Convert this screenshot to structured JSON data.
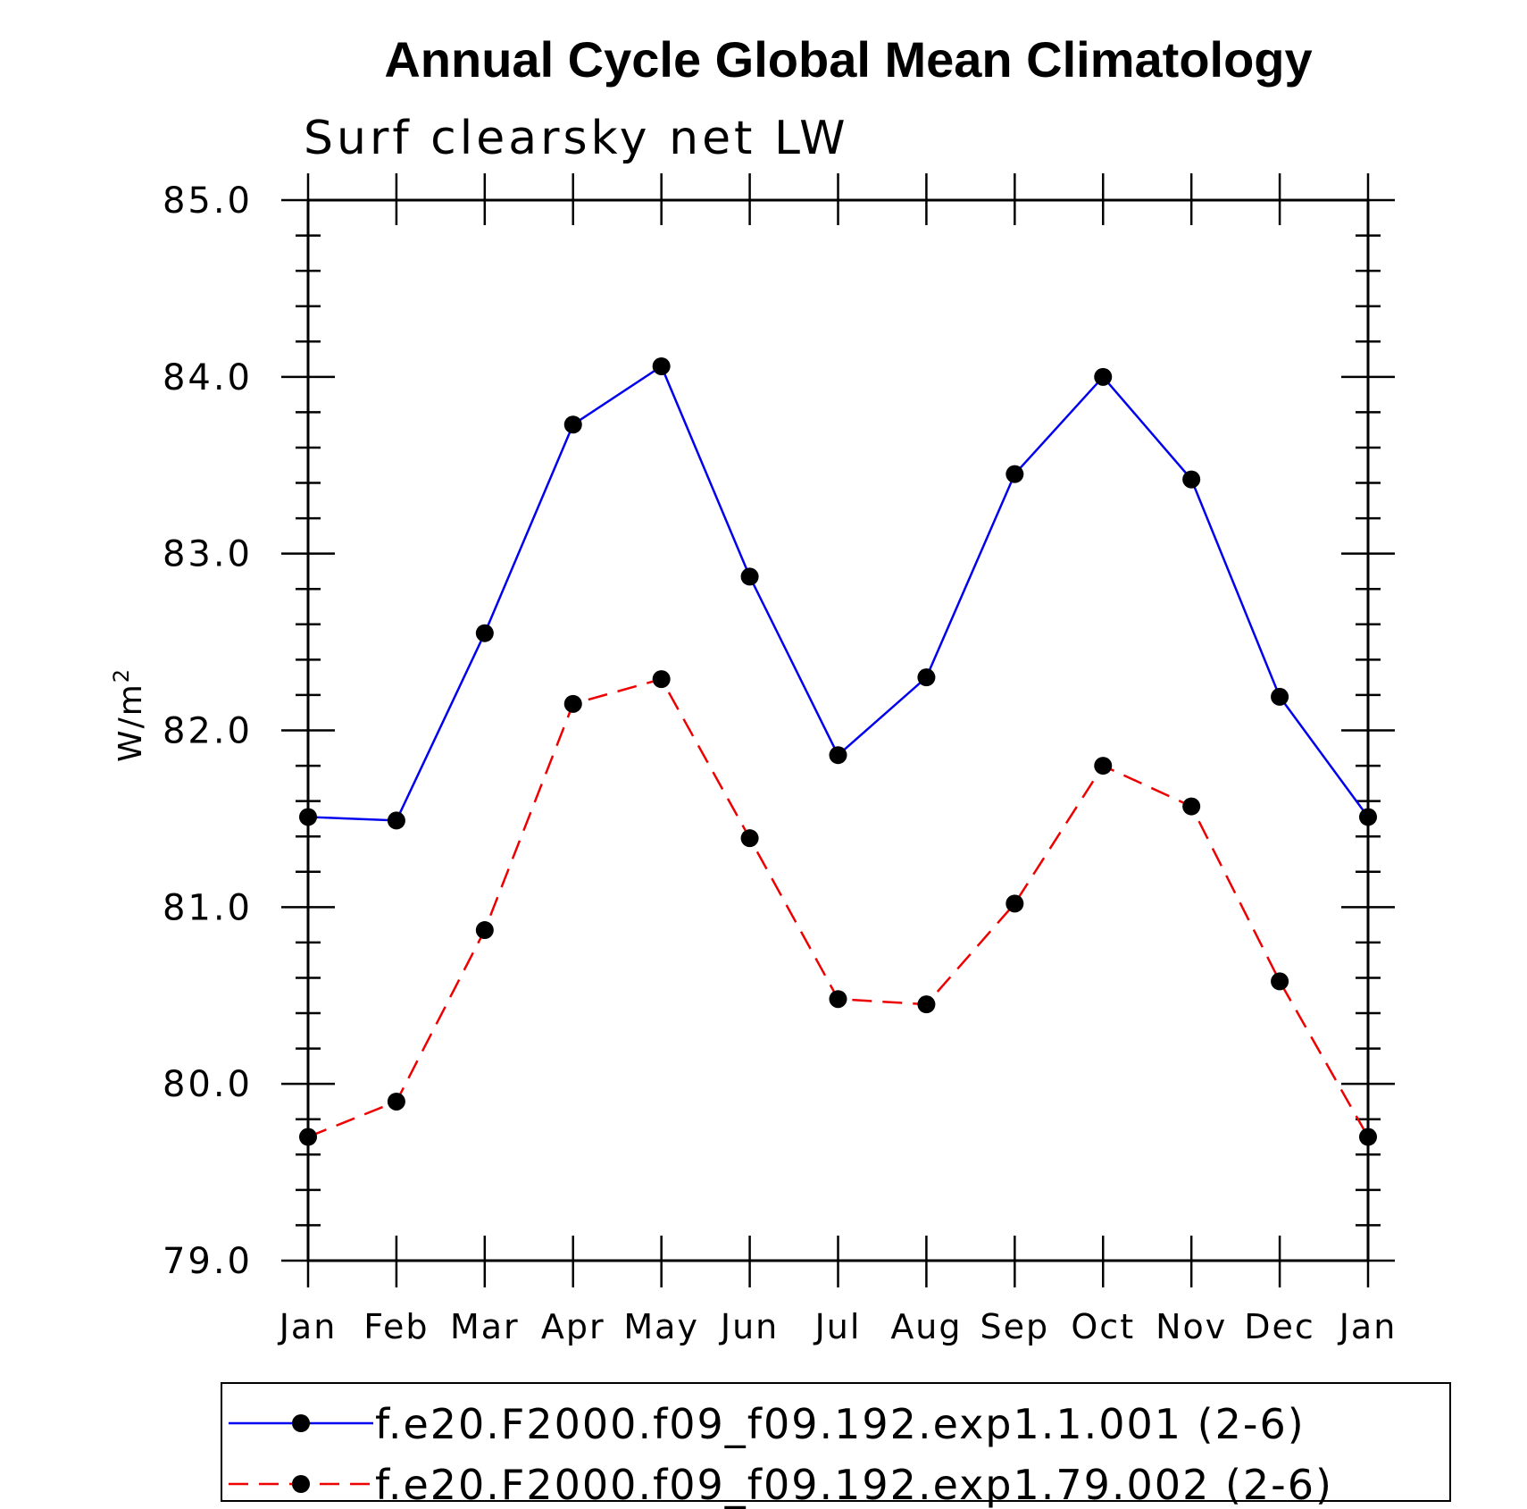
{
  "chart_data": {
    "type": "line",
    "title": "Annual Cycle Global Mean Climatology",
    "subtitle": "Surf clearsky net LW",
    "ylabel": "W/m",
    "ylabel_superscript": "2",
    "categories": [
      "Jan",
      "Feb",
      "Mar",
      "Apr",
      "May",
      "Jun",
      "Jul",
      "Aug",
      "Sep",
      "Oct",
      "Nov",
      "Dec",
      "Jan"
    ],
    "ylim": [
      79.0,
      85.0
    ],
    "yticks": [
      "79.0",
      "80.0",
      "81.0",
      "82.0",
      "83.0",
      "84.0",
      "85.0"
    ],
    "grid": false,
    "legend_placement": "bottom",
    "series": [
      {
        "name": "f.e20.F2000.f09_f09.192.exp1.1.001 (2-6)",
        "color": "#0000ee",
        "dash": "solid",
        "values": [
          81.51,
          81.49,
          82.55,
          83.73,
          84.06,
          82.87,
          81.86,
          82.3,
          83.45,
          84.0,
          83.42,
          82.19,
          81.51
        ]
      },
      {
        "name": "f.e20.F2000.f09_f09.192.exp1.79.002 (2-6)",
        "color": "#ee0000",
        "dash": "dashed",
        "values": [
          79.7,
          79.9,
          80.87,
          82.15,
          82.29,
          81.39,
          80.48,
          80.45,
          81.02,
          81.8,
          81.57,
          80.58,
          79.7
        ]
      }
    ]
  }
}
